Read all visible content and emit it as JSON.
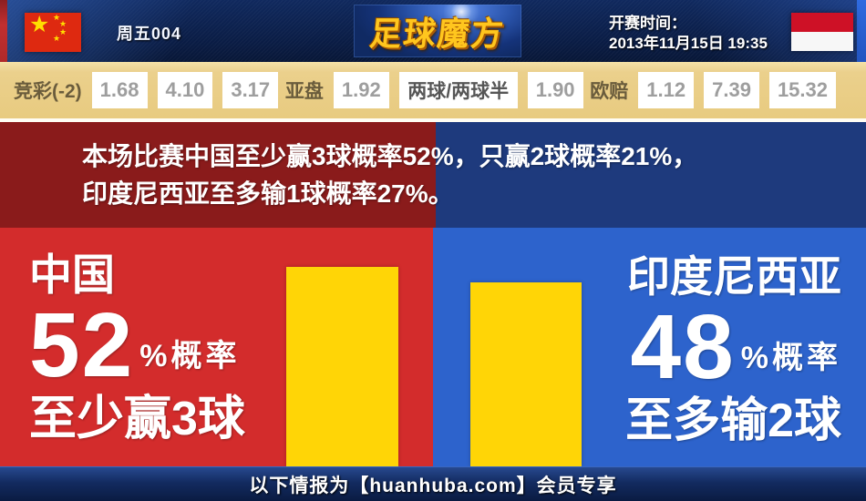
{
  "header": {
    "match_code": "周五004",
    "logo_text": "足球魔方",
    "kickoff_label": "开赛时间：",
    "kickoff_time": "2013年11月15日 19:35",
    "home_flag": "china-flag",
    "away_flag": "indonesia-flag"
  },
  "odds": {
    "jingcai": {
      "label": "竞彩(-2)",
      "values": [
        "1.68",
        "4.10",
        "3.17"
      ]
    },
    "yapan": {
      "label": "亚盘",
      "values": [
        "1.92",
        "两球/两球半",
        "1.90"
      ]
    },
    "oupei": {
      "label": "欧赔",
      "values": [
        "1.12",
        "7.39",
        "15.32"
      ]
    }
  },
  "banner": {
    "line1": "本场比赛中国至少赢3球概率52%，只赢2球概率21%，",
    "line2": "印度尼西亚至多输1球概率27%。"
  },
  "main": {
    "left": {
      "team": "中国",
      "percent": "52",
      "percent_suffix": "%概率",
      "outcome": "至少赢3球"
    },
    "right": {
      "team": "印度尼西亚",
      "percent": "48",
      "percent_suffix": "%概率",
      "outcome": "至多输2球"
    }
  },
  "footer": {
    "text": "以下情报为【huanhuba.com】会员专享"
  },
  "colors": {
    "header_navy": "#0a1c44",
    "odds_bar_tan": "#e8cb80",
    "banner_maroon": "#8a1b1b",
    "banner_navy": "#1e3a7d",
    "main_red": "#d32c2c",
    "main_blue": "#2d63cc",
    "bar_yellow": "#ffd506",
    "logo_gold": "#ffc61e"
  },
  "chart_data": {
    "type": "bar",
    "categories": [
      "中国 至少赢3球",
      "印度尼西亚 至多输2球"
    ],
    "values": [
      52,
      48
    ],
    "unit": "%",
    "bar_color": "#ffd506"
  }
}
